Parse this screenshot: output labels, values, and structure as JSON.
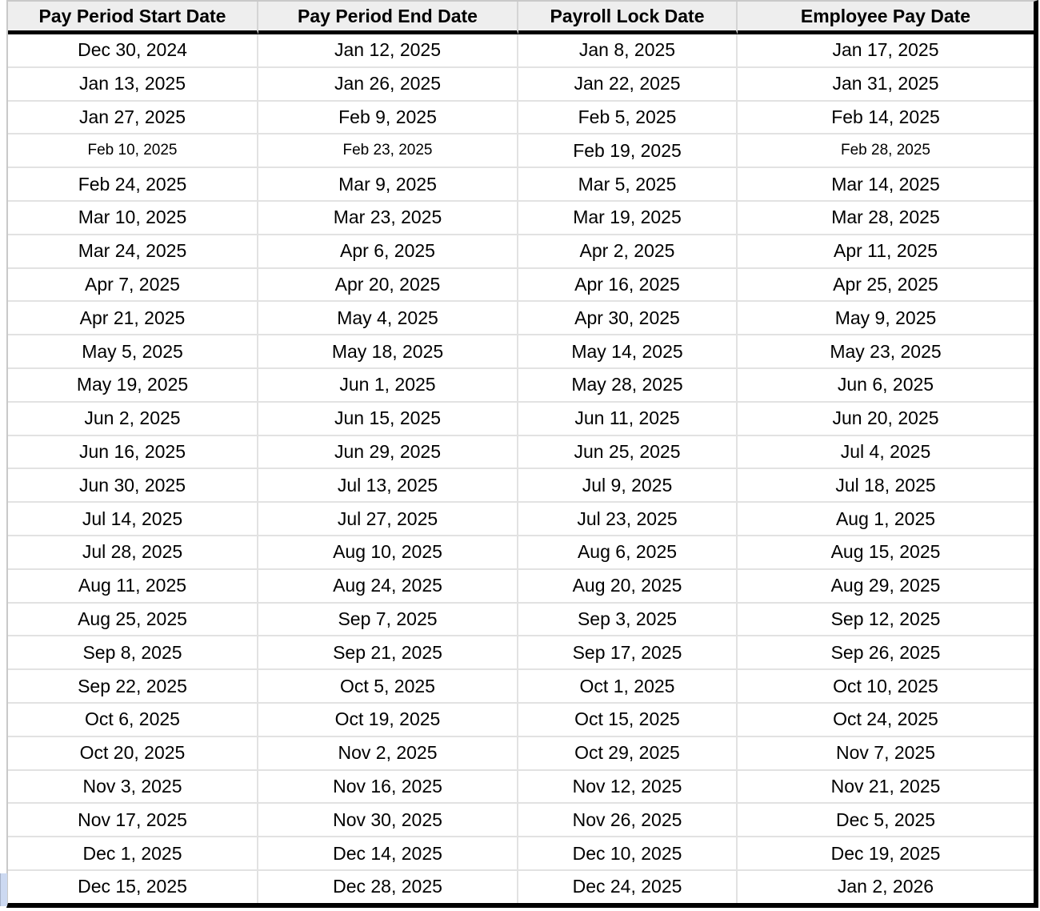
{
  "table": {
    "columns": [
      "Pay Period Start Date",
      "Pay Period End Date",
      "Payroll Lock Date",
      "Employee Pay Date"
    ],
    "column_keys": [
      "pay-period-start-date",
      "pay-period-end-date",
      "payroll-lock-date",
      "employee-pay-date"
    ],
    "rows": [
      [
        "Dec 30, 2024",
        "Jan 12, 2025",
        "Jan 8, 2025",
        "Jan 17, 2025"
      ],
      [
        "Jan 13, 2025",
        "Jan 26, 2025",
        "Jan 22, 2025",
        "Jan 31, 2025"
      ],
      [
        "Jan 27, 2025",
        "Feb 9, 2025",
        "Feb 5, 2025",
        "Feb 14, 2025"
      ],
      [
        "Feb 10, 2025",
        "Feb 23, 2025",
        "Feb 19, 2025",
        "Feb 28, 2025"
      ],
      [
        "Feb 24, 2025",
        "Mar 9, 2025",
        "Mar 5, 2025",
        "Mar 14, 2025"
      ],
      [
        "Mar 10, 2025",
        "Mar 23, 2025",
        "Mar 19, 2025",
        "Mar 28, 2025"
      ],
      [
        "Mar 24, 2025",
        "Apr 6, 2025",
        "Apr 2, 2025",
        "Apr 11, 2025"
      ],
      [
        "Apr 7, 2025",
        "Apr 20, 2025",
        "Apr 16, 2025",
        "Apr 25, 2025"
      ],
      [
        "Apr 21, 2025",
        "May 4, 2025",
        "Apr 30, 2025",
        "May 9, 2025"
      ],
      [
        "May 5, 2025",
        "May 18, 2025",
        "May 14, 2025",
        "May 23, 2025"
      ],
      [
        "May 19, 2025",
        "Jun 1, 2025",
        "May 28, 2025",
        "Jun 6, 2025"
      ],
      [
        "Jun 2, 2025",
        "Jun 15, 2025",
        "Jun 11, 2025",
        "Jun 20, 2025"
      ],
      [
        "Jun 16, 2025",
        "Jun 29, 2025",
        "Jun 25, 2025",
        "Jul 4, 2025"
      ],
      [
        "Jun 30, 2025",
        "Jul 13, 2025",
        "Jul 9, 2025",
        "Jul 18, 2025"
      ],
      [
        "Jul 14, 2025",
        "Jul 27, 2025",
        "Jul 23, 2025",
        "Aug 1, 2025"
      ],
      [
        "Jul 28, 2025",
        "Aug 10, 2025",
        "Aug 6, 2025",
        "Aug 15, 2025"
      ],
      [
        "Aug 11, 2025",
        "Aug 24, 2025",
        "Aug 20, 2025",
        "Aug 29, 2025"
      ],
      [
        "Aug 25, 2025",
        "Sep 7, 2025",
        "Sep 3, 2025",
        "Sep 12, 2025"
      ],
      [
        "Sep 8, 2025",
        "Sep 21, 2025",
        "Sep 17, 2025",
        "Sep 26, 2025"
      ],
      [
        "Sep 22, 2025",
        "Oct 5, 2025",
        "Oct 1, 2025",
        "Oct 10, 2025"
      ],
      [
        "Oct 6, 2025",
        "Oct 19, 2025",
        "Oct 15, 2025",
        "Oct 24, 2025"
      ],
      [
        "Oct 20, 2025",
        "Nov 2, 2025",
        "Oct 29, 2025",
        "Nov 7, 2025"
      ],
      [
        "Nov 3, 2025",
        "Nov 16, 2025",
        "Nov 12, 2025",
        "Nov 21, 2025"
      ],
      [
        "Nov 17, 2025",
        "Nov 30, 2025",
        "Nov 26, 2025",
        "Dec 5, 2025"
      ],
      [
        "Dec 1, 2025",
        "Dec 14, 2025",
        "Dec 10, 2025",
        "Dec 19, 2025"
      ],
      [
        "Dec 15, 2025",
        "Dec 28, 2025",
        "Dec 24, 2025",
        "Jan 2, 2026"
      ]
    ],
    "small_font_cells": {
      "row": 3,
      "cols": [
        0,
        1,
        3
      ]
    }
  },
  "colors": {
    "header_bg": "#eeeeee",
    "header_grid_line": "#d4d4d4",
    "body_grid_line": "#e2e2e2",
    "frame_line": "#c9c9c9",
    "heavy_border": "#000000",
    "selection_blue": "#ccd9f1",
    "text": "#000000"
  }
}
